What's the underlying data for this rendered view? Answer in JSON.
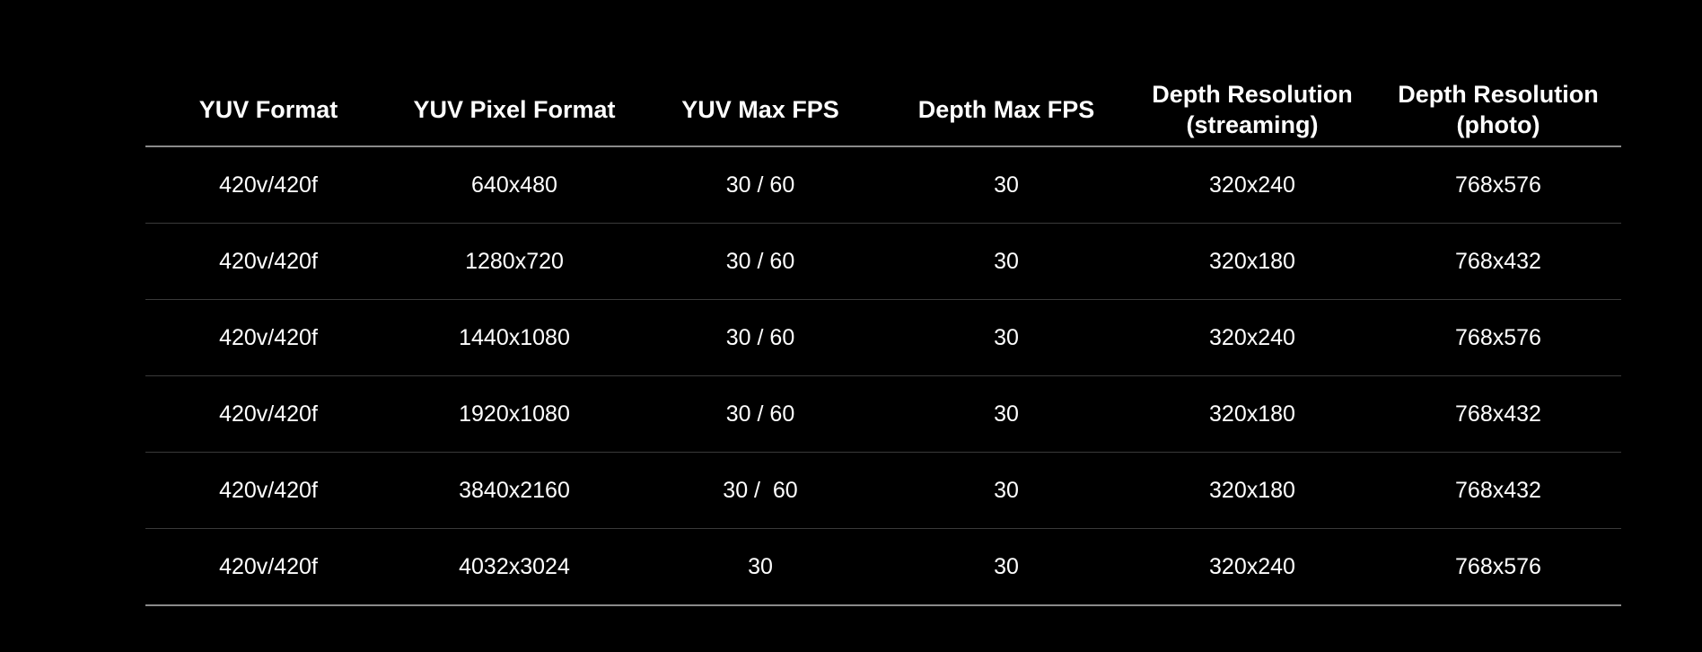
{
  "table": {
    "headers": [
      "YUV Format",
      "YUV Pixel Format",
      "YUV Max FPS",
      "Depth Max FPS",
      "Depth Resolution\n(streaming)",
      "Depth Resolution\n(photo)"
    ],
    "rows": [
      [
        "420v/420f",
        "640x480",
        "30 / 60",
        "30",
        "320x240",
        "768x576"
      ],
      [
        "420v/420f",
        "1280x720",
        "30 / 60",
        "30",
        "320x180",
        "768x432"
      ],
      [
        "420v/420f",
        "1440x1080",
        "30 / 60",
        "30",
        "320x240",
        "768x576"
      ],
      [
        "420v/420f",
        "1920x1080",
        "30 / 60",
        "30",
        "320x180",
        "768x432"
      ],
      [
        "420v/420f",
        "3840x2160",
        "30 /  60",
        "30",
        "320x180",
        "768x432"
      ],
      [
        "420v/420f",
        "4032x3024",
        "30",
        "30",
        "320x240",
        "768x576"
      ]
    ]
  },
  "colors": {
    "background": "#000000",
    "text": "#ffffff",
    "header_rule": "#8a8a8a",
    "row_rule": "#3a3a3a"
  }
}
